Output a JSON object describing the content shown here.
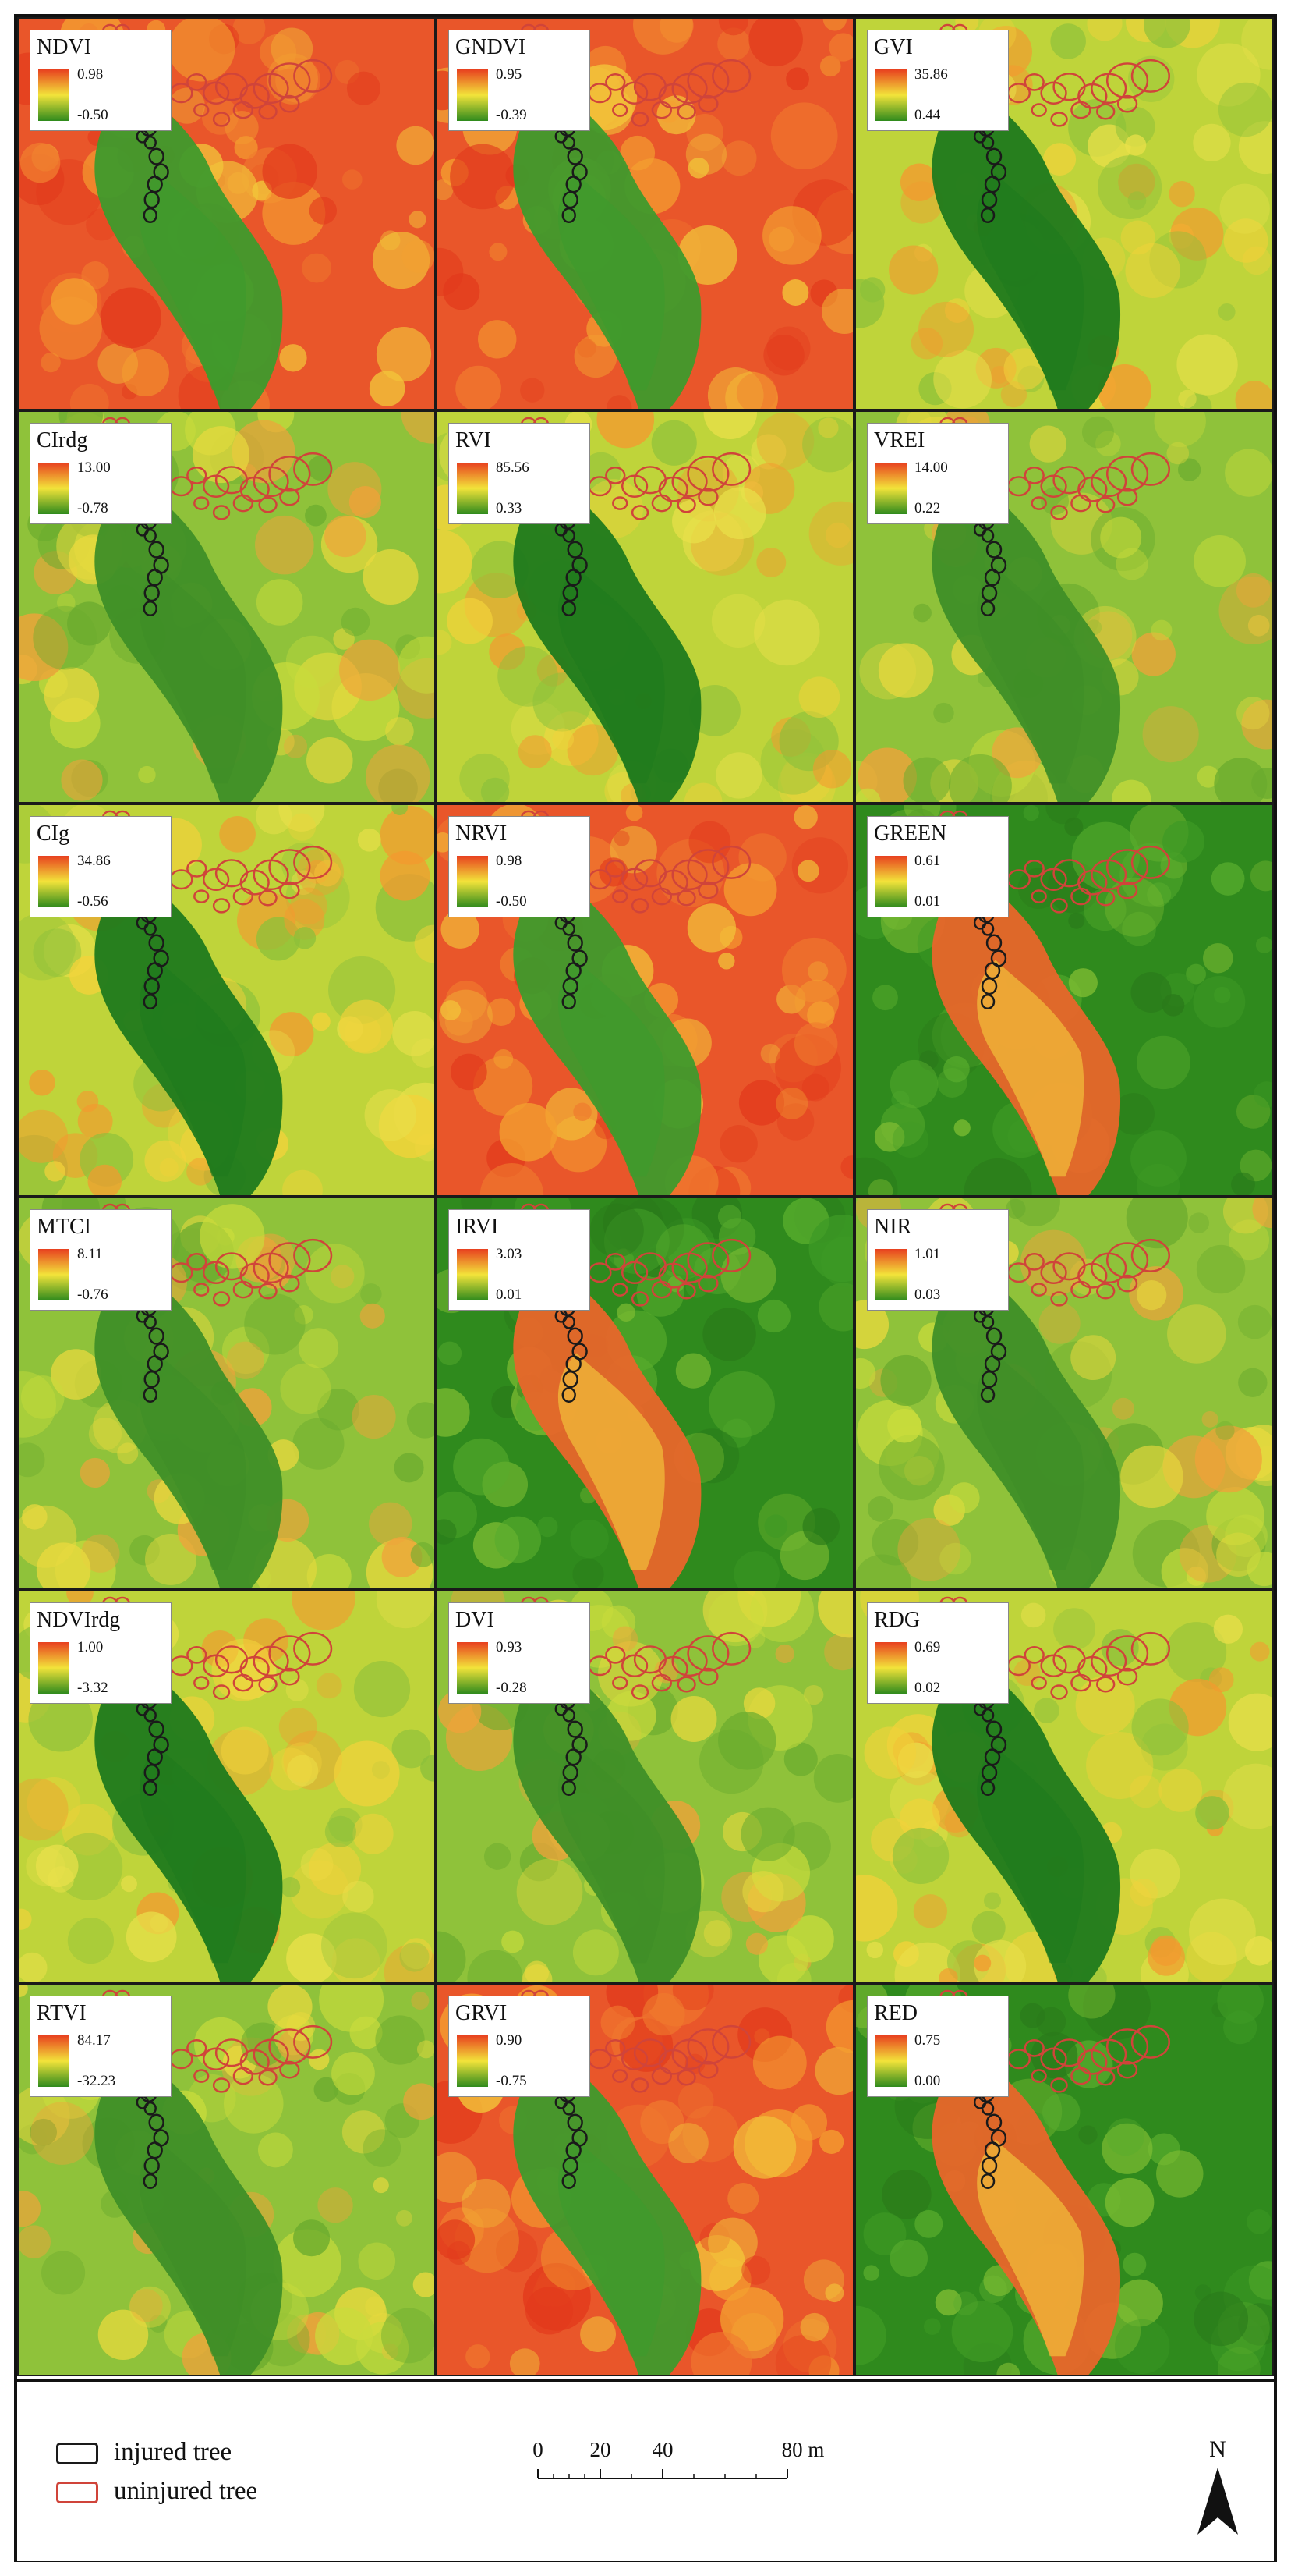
{
  "panels": [
    {
      "name": "NDVI",
      "max": "0.98",
      "min": "-0.50",
      "palette": "warm"
    },
    {
      "name": "GNDVI",
      "max": "0.95",
      "min": "-0.39",
      "palette": "warm"
    },
    {
      "name": "GVI",
      "max": "35.86",
      "min": "0.44",
      "palette": "mixed"
    },
    {
      "name": "CIrdg",
      "max": "13.00",
      "min": "-0.78",
      "palette": "yellowgreen"
    },
    {
      "name": "RVI",
      "max": "85.56",
      "min": "0.33",
      "palette": "mixed"
    },
    {
      "name": "VREI",
      "max": "14.00",
      "min": "0.22",
      "palette": "yellowgreen"
    },
    {
      "name": "CIg",
      "max": "34.86",
      "min": "-0.56",
      "palette": "mixed"
    },
    {
      "name": "NRVI",
      "max": "0.98",
      "min": "-0.50",
      "palette": "warm"
    },
    {
      "name": "GREEN",
      "max": "0.61",
      "min": "0.01",
      "palette": "inverse"
    },
    {
      "name": "MTCI",
      "max": "8.11",
      "min": "-0.76",
      "palette": "yellowgreen"
    },
    {
      "name": "IRVI",
      "max": "3.03",
      "min": "0.01",
      "palette": "inverse"
    },
    {
      "name": "NIR",
      "max": "1.01",
      "min": "0.03",
      "palette": "yellowgreen"
    },
    {
      "name": "NDVIrdg",
      "max": "1.00",
      "min": "-3.32",
      "palette": "mixed"
    },
    {
      "name": "DVI",
      "max": "0.93",
      "min": "-0.28",
      "palette": "yellowgreen"
    },
    {
      "name": "RDG",
      "max": "0.69",
      "min": "0.02",
      "palette": "mixed"
    },
    {
      "name": "RTVI",
      "max": "84.17",
      "min": "-32.23",
      "palette": "yellowgreen"
    },
    {
      "name": "GRVI",
      "max": "0.90",
      "min": "-0.75",
      "palette": "warm"
    },
    {
      "name": "RED",
      "max": "0.75",
      "min": "0.00",
      "palette": "inverse"
    }
  ],
  "legend": {
    "injured": {
      "label": "injured tree",
      "color": "#1a1a1a"
    },
    "uninjured": {
      "label": "uninjured tree",
      "color": "#d0443a"
    }
  },
  "scale": {
    "ticks": [
      "0",
      "20",
      "40",
      "80 m"
    ]
  },
  "north": {
    "label": "N"
  },
  "colors": {
    "high": "#e8401f",
    "mid": "#f2e33a",
    "low": "#2f8a1d"
  }
}
